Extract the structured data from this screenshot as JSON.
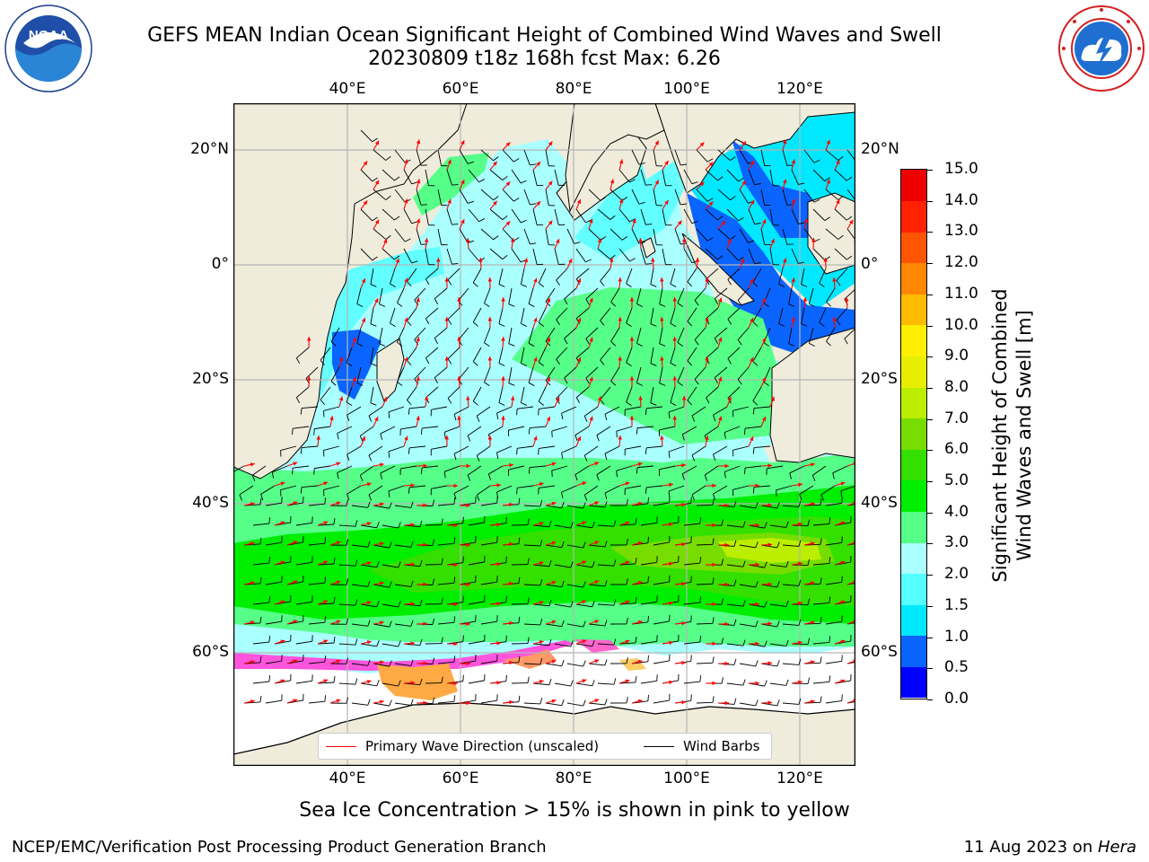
{
  "header": {
    "title_line1": "GEFS MEAN Indian Ocean Significant Height of Combined Wind Waves and Swell",
    "title_line2": "20230809 t18z 168h fcst   Max: 6.26"
  },
  "logos": {
    "left": "noaa-logo",
    "left_text": "NOAA",
    "right": "national-weather-service-logo"
  },
  "map": {
    "lon_ticks_top": [
      "40°E",
      "60°E",
      "80°E",
      "100°E",
      "120°E"
    ],
    "lon_ticks_bottom": [
      "40°E",
      "60°E",
      "80°E",
      "100°E",
      "120°E"
    ],
    "lat_ticks_left": [
      "20°N",
      "0°",
      "20°S",
      "40°S",
      "60°S"
    ],
    "lat_ticks_right": [
      "20°N",
      "0°",
      "20°S",
      "40°S",
      "60°S"
    ],
    "colors": {
      "land": "#efecdc",
      "ice": "#ffffff",
      "grid": "#b5b5b5"
    }
  },
  "legend": {
    "wave_label": "Primary Wave Direction (unscaled)",
    "wave_color": "#ff0000",
    "wind_label": "Wind Barbs",
    "wind_color": "#000000"
  },
  "colorbar": {
    "label_line1": "Significant Height of Combined",
    "label_line2": "Wind Waves and Swell [m]",
    "ticks": [
      "0.0",
      "0.5",
      "1.0",
      "1.5",
      "2.0",
      "3.0",
      "4.0",
      "5.0",
      "6.0",
      "7.0",
      "8.0",
      "9.0",
      "10.0",
      "11.0",
      "12.0",
      "13.0",
      "14.0",
      "15.0"
    ],
    "colors": [
      "#0000ff",
      "#0a64ff",
      "#00e8ff",
      "#55ffff",
      "#aaffff",
      "#55ff88",
      "#00ee00",
      "#33e000",
      "#77dd00",
      "#bbee00",
      "#e8ee00",
      "#ffee00",
      "#ffbb00",
      "#ff8800",
      "#ff5500",
      "#ff2200",
      "#ee0000"
    ]
  },
  "notes": {
    "sea_ice": "Sea Ice Concentration > 15% is shown in pink to yellow",
    "producer": "NCEP/EMC/Verification Post Processing Product Generation Branch",
    "date": "11 Aug 2023 on ",
    "machine": "Hera"
  }
}
